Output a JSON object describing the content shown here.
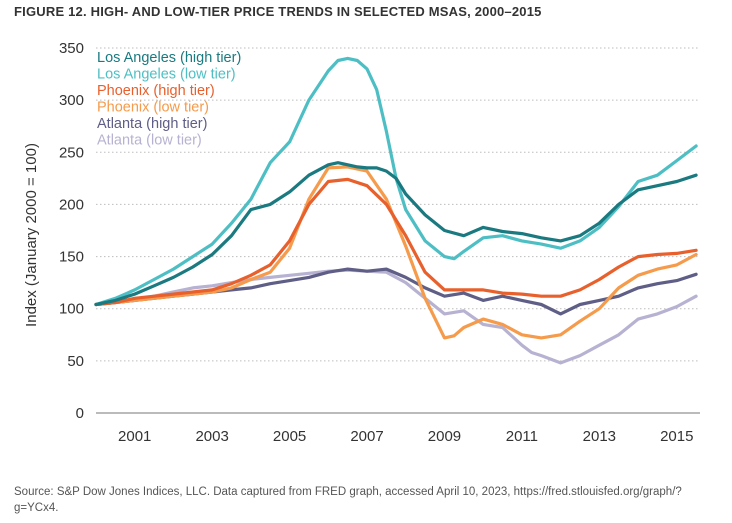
{
  "figure": {
    "title": "FIGURE 12. HIGH- AND LOW-TIER PRICE TRENDS IN SELECTED MSAS, 2000–2015",
    "source": "Source: S&P Dow Jones Indices, LLC. Data captured from FRED graph, accessed April 10, 2023, https://fred.stlouisfed.org/graph/?g=YCx4."
  },
  "chart_data": {
    "type": "line",
    "title": "",
    "xlabel": "",
    "ylabel": "Index (January 2000 = 100)",
    "xlim": [
      2000,
      2015.6
    ],
    "ylim": [
      0,
      350
    ],
    "x_ticks": [
      "2001",
      "2003",
      "2005",
      "2007",
      "2009",
      "2011",
      "2013",
      "2015"
    ],
    "y_ticks": [
      "0",
      "50",
      "100",
      "150",
      "200",
      "250",
      "300",
      "350"
    ],
    "grid": "horizontal dotted",
    "legend_position": "top-left",
    "series": [
      {
        "name": "Los Angeles (high tier)",
        "color": "#1a7a80",
        "x": [
          2000,
          2000.5,
          2001,
          2001.5,
          2002,
          2002.5,
          2003,
          2003.5,
          2004,
          2004.5,
          2005,
          2005.5,
          2006,
          2006.25,
          2006.5,
          2006.75,
          2007,
          2007.25,
          2007.5,
          2007.75,
          2008,
          2008.5,
          2009,
          2009.5,
          2010,
          2010.5,
          2011,
          2011.5,
          2012,
          2012.5,
          2013,
          2013.5,
          2014,
          2014.5,
          2015,
          2015.5
        ],
        "y": [
          104,
          108,
          114,
          122,
          130,
          140,
          152,
          170,
          195,
          200,
          212,
          228,
          238,
          240,
          238,
          236,
          235,
          235,
          232,
          225,
          210,
          190,
          175,
          170,
          178,
          174,
          172,
          168,
          165,
          170,
          182,
          200,
          214,
          218,
          222,
          228
        ]
      },
      {
        "name": "Los Angeles (low tier)",
        "color": "#4dbfc4",
        "x": [
          2000,
          2000.5,
          2001,
          2001.5,
          2002,
          2002.5,
          2003,
          2003.5,
          2004,
          2004.5,
          2005,
          2005.5,
          2006,
          2006.25,
          2006.5,
          2006.75,
          2007,
          2007.25,
          2007.5,
          2007.75,
          2008,
          2008.5,
          2009,
          2009.25,
          2009.5,
          2010,
          2010.5,
          2011,
          2011.5,
          2012,
          2012.5,
          2013,
          2013.5,
          2014,
          2014.5,
          2015,
          2015.5
        ],
        "y": [
          104,
          110,
          118,
          128,
          138,
          150,
          162,
          182,
          205,
          240,
          260,
          300,
          328,
          338,
          340,
          338,
          330,
          310,
          270,
          225,
          195,
          165,
          150,
          148,
          155,
          168,
          170,
          165,
          162,
          158,
          165,
          178,
          198,
          222,
          228,
          242,
          256
        ]
      },
      {
        "name": "Phoenix (high tier)",
        "color": "#e8602c",
        "x": [
          2000,
          2000.5,
          2001,
          2001.5,
          2002,
          2002.5,
          2003,
          2003.5,
          2004,
          2004.5,
          2005,
          2005.5,
          2006,
          2006.5,
          2007,
          2007.5,
          2008,
          2008.5,
          2009,
          2009.5,
          2010,
          2010.5,
          2011,
          2011.5,
          2012,
          2012.5,
          2013,
          2013.5,
          2014,
          2014.5,
          2015,
          2015.5
        ],
        "y": [
          104,
          106,
          110,
          112,
          114,
          116,
          118,
          124,
          132,
          142,
          165,
          200,
          222,
          224,
          218,
          200,
          170,
          135,
          118,
          118,
          118,
          115,
          114,
          112,
          112,
          118,
          128,
          140,
          150,
          152,
          153,
          156
        ]
      },
      {
        "name": "Phoenix (low tier)",
        "color": "#f59b4b",
        "x": [
          2000,
          2000.5,
          2001,
          2001.5,
          2002,
          2002.5,
          2003,
          2003.5,
          2004,
          2004.5,
          2005,
          2005.5,
          2006,
          2006.5,
          2007,
          2007.5,
          2008,
          2008.5,
          2009,
          2009.25,
          2009.5,
          2010,
          2010.5,
          2011,
          2011.5,
          2012,
          2012.5,
          2013,
          2013.5,
          2014,
          2014.5,
          2015,
          2015.5
        ],
        "y": [
          104,
          106,
          108,
          110,
          112,
          114,
          116,
          120,
          128,
          135,
          158,
          205,
          235,
          236,
          232,
          205,
          160,
          110,
          72,
          74,
          82,
          90,
          85,
          75,
          72,
          75,
          88,
          100,
          120,
          132,
          138,
          142,
          152
        ]
      },
      {
        "name": "Atlanta (high tier)",
        "color": "#5e5e86",
        "x": [
          2000,
          2000.5,
          2001,
          2001.5,
          2002,
          2002.5,
          2003,
          2003.5,
          2004,
          2004.5,
          2005,
          2005.5,
          2006,
          2006.5,
          2007,
          2007.5,
          2008,
          2008.5,
          2009,
          2009.5,
          2010,
          2010.5,
          2011,
          2011.5,
          2012,
          2012.5,
          2013,
          2013.5,
          2014,
          2014.5,
          2015,
          2015.5
        ],
        "y": [
          104,
          106,
          108,
          110,
          112,
          114,
          116,
          118,
          120,
          124,
          127,
          130,
          135,
          138,
          136,
          138,
          130,
          120,
          112,
          115,
          108,
          112,
          108,
          104,
          95,
          104,
          108,
          112,
          120,
          124,
          127,
          133
        ]
      },
      {
        "name": "Atlanta (low tier)",
        "color": "#b7b2d2",
        "x": [
          2000,
          2000.5,
          2001,
          2001.5,
          2002,
          2002.5,
          2003,
          2003.5,
          2004,
          2004.5,
          2005,
          2005.5,
          2006,
          2006.5,
          2007,
          2007.5,
          2008,
          2008.5,
          2009,
          2009.5,
          2010,
          2010.5,
          2011,
          2011.25,
          2011.5,
          2012,
          2012.5,
          2013,
          2013.5,
          2014,
          2014.5,
          2015,
          2015.5
        ],
        "y": [
          104,
          106,
          108,
          112,
          116,
          120,
          122,
          125,
          128,
          130,
          132,
          134,
          136,
          137,
          136,
          135,
          125,
          110,
          95,
          98,
          85,
          82,
          65,
          58,
          55,
          48,
          55,
          65,
          75,
          90,
          95,
          102,
          112
        ]
      }
    ]
  }
}
